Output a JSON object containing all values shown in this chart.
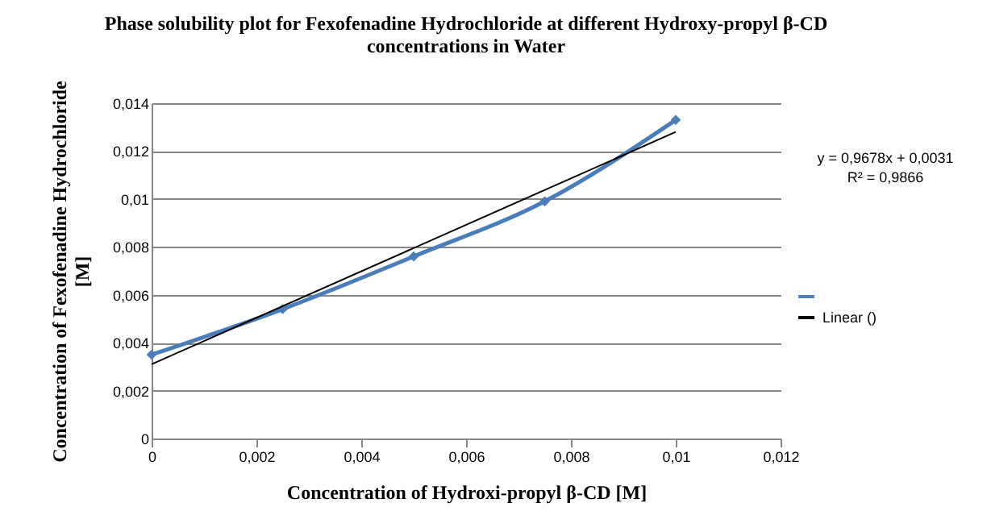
{
  "chart_data": {
    "type": "line",
    "title": "Phase solubility plot  for Fexofenadine Hydrochloride at different Hydroxy-propyl β-CD\nconcentrations in Water",
    "xlabel": "Concentration of Hydroxi-propyl β-CD [M]",
    "ylabel": "Concentration of Fexofenadine Hydrochloride\n[M]",
    "x": [
      0,
      0.0025,
      0.005,
      0.0075,
      0.01
    ],
    "series": [
      {
        "color": "#4a7ebb",
        "values": [
          0.0035,
          0.0054,
          0.0076,
          0.0099,
          0.0133
        ]
      },
      {
        "name": "Linear ()",
        "color": "#000000",
        "x": [
          0,
          0.01
        ],
        "values": [
          0.0031,
          0.0128
        ],
        "marker": "none"
      }
    ],
    "marker": "diamond",
    "grid": "y",
    "legend": "right",
    "xlim": [
      0,
      0.012
    ],
    "xticks": [
      0,
      {
        "value": 0.002,
        "label": "0,002"
      },
      {
        "value": 0.004,
        "label": "0,004"
      },
      {
        "value": 0.006,
        "label": "0,006"
      },
      {
        "value": 0.008,
        "label": "0,008"
      },
      {
        "value": 0.01,
        "label": "0,01"
      },
      {
        "value": 0.012,
        "label": "0,012"
      }
    ],
    "ylim": [
      0,
      0.014
    ],
    "yticks": [
      0,
      {
        "value": 0.002,
        "label": "0,002"
      },
      {
        "value": 0.004,
        "label": "0,004"
      },
      {
        "value": 0.006,
        "label": "0,006"
      },
      {
        "value": 0.008,
        "label": "0,008"
      },
      {
        "value": 0.01,
        "label": "0,01"
      },
      {
        "value": 0.012,
        "label": "0,012"
      },
      {
        "value": 0.014,
        "label": "0,014"
      }
    ],
    "annotations": [
      "y = 0,9678x + 0,0031",
      "R² = 0,9866"
    ]
  }
}
